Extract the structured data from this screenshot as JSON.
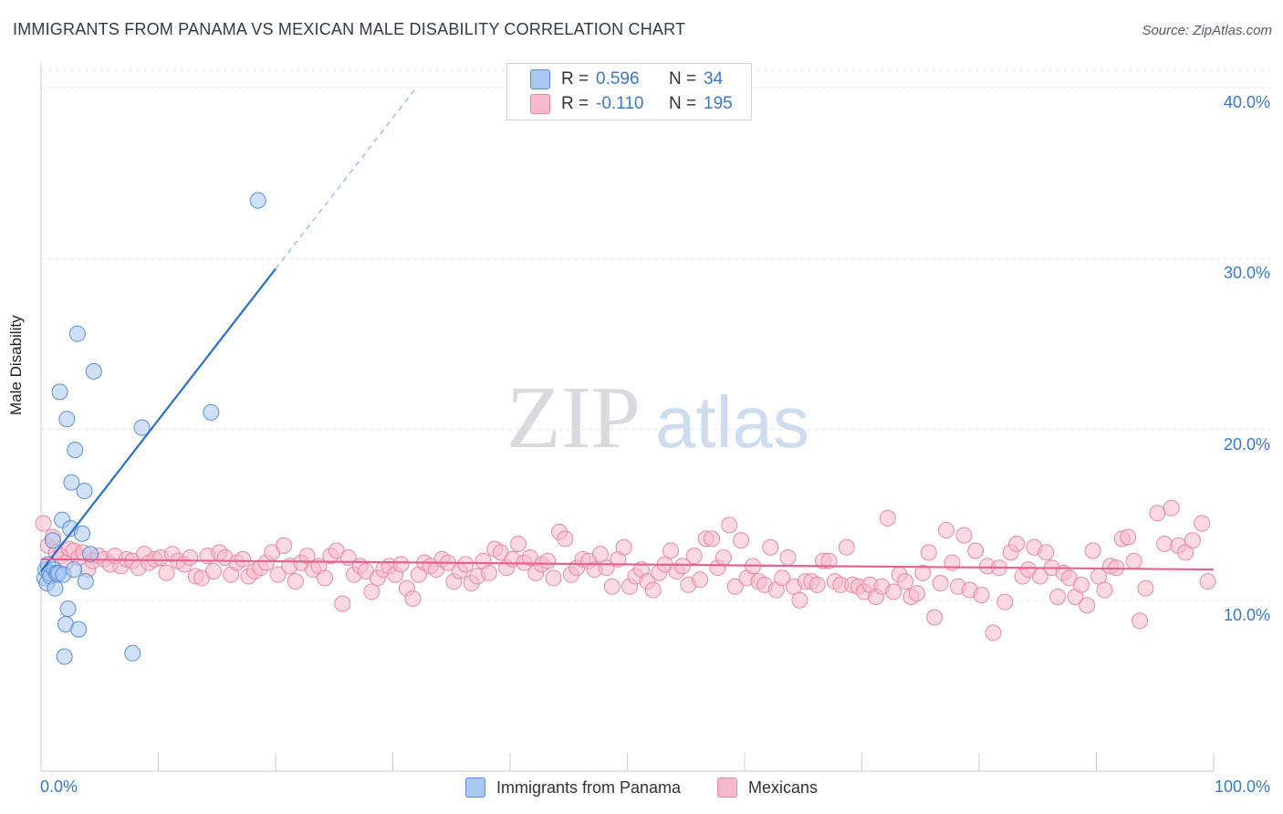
{
  "header": {
    "title": "IMMIGRANTS FROM PANAMA VS MEXICAN MALE DISABILITY CORRELATION CHART",
    "source": "Source: ZipAtlas.com"
  },
  "watermark": {
    "zip": "ZIP",
    "atlas": "atlas"
  },
  "legend": {
    "rows": [
      {
        "r_label": "R =",
        "r_value": "0.596",
        "n_label": "N =",
        "n_value": "34",
        "color": "#a9c8f0"
      },
      {
        "r_label": "R =",
        "r_value": "-0.110",
        "n_label": "N =",
        "n_value": "195",
        "color": "#f7b9cb"
      }
    ]
  },
  "colors": {
    "blue_fill": "#a9c8f0",
    "blue_stroke": "#5a8fd4",
    "blue_line": "#2a6fc9",
    "pink_fill": "#f7b9cb",
    "pink_stroke": "#e58aa6",
    "pink_line": "#e4628f",
    "axis_text": "#3a79c7",
    "grid": "#e3e6ea"
  },
  "chart_data": {
    "type": "scatter",
    "title": "IMMIGRANTS FROM PANAMA VS MEXICAN MALE DISABILITY CORRELATION CHART",
    "xlabel": "",
    "ylabel": "Male Disability",
    "xlim": [
      0,
      100
    ],
    "ylim": [
      0,
      41.5
    ],
    "x_tick_labels": [
      "0.0%",
      "100.0%"
    ],
    "y_ticks": [
      10,
      20,
      30,
      40
    ],
    "y_tick_labels": [
      "10.0%",
      "20.0%",
      "30.0%",
      "40.0%"
    ],
    "grid": true,
    "legend_position": "bottom",
    "series": [
      {
        "name": "Immigrants from Panama",
        "color": "#a9c8f0",
        "r": 0.596,
        "n": 34,
        "trend": {
          "x": [
            0,
            20
          ],
          "y": [
            11.7,
            29.4
          ],
          "dashed_to": [
            32,
            40
          ]
        },
        "points": [
          [
            0.3,
            11.3
          ],
          [
            0.4,
            11.8
          ],
          [
            0.5,
            11.0
          ],
          [
            0.6,
            12.1
          ],
          [
            0.7,
            11.6
          ],
          [
            0.8,
            11.4
          ],
          [
            1.0,
            13.5
          ],
          [
            1.1,
            11.8
          ],
          [
            1.2,
            10.7
          ],
          [
            1.3,
            11.6
          ],
          [
            1.4,
            11.5
          ],
          [
            1.5,
            11.6
          ],
          [
            1.6,
            22.2
          ],
          [
            1.8,
            14.7
          ],
          [
            1.9,
            11.5
          ],
          [
            2.0,
            6.7
          ],
          [
            2.1,
            8.6
          ],
          [
            2.2,
            20.6
          ],
          [
            2.3,
            9.5
          ],
          [
            2.5,
            14.2
          ],
          [
            2.6,
            16.9
          ],
          [
            2.8,
            11.8
          ],
          [
            2.9,
            18.8
          ],
          [
            3.1,
            25.6
          ],
          [
            3.2,
            8.3
          ],
          [
            3.5,
            13.9
          ],
          [
            3.7,
            16.4
          ],
          [
            3.8,
            11.1
          ],
          [
            4.2,
            12.7
          ],
          [
            4.5,
            23.4
          ],
          [
            7.8,
            6.9
          ],
          [
            8.6,
            20.1
          ],
          [
            14.5,
            21.0
          ],
          [
            18.5,
            33.4
          ]
        ]
      },
      {
        "name": "Mexicans",
        "color": "#f7b9cb",
        "r": -0.11,
        "n": 195,
        "trend": {
          "x": [
            0,
            100
          ],
          "y": [
            12.4,
            11.8
          ]
        },
        "points": [
          [
            0.2,
            14.5
          ],
          [
            0.6,
            13.2
          ],
          [
            1.0,
            13.7
          ],
          [
            1.3,
            12.8
          ],
          [
            1.7,
            12.6
          ],
          [
            2.1,
            12.2
          ],
          [
            2.4,
            13.0
          ],
          [
            2.8,
            12.9
          ],
          [
            3.2,
            12.5
          ],
          [
            3.6,
            12.8
          ],
          [
            4.0,
            11.8
          ],
          [
            4.4,
            12.3
          ],
          [
            4.9,
            12.6
          ],
          [
            5.4,
            12.4
          ],
          [
            5.9,
            12.1
          ],
          [
            6.3,
            12.6
          ],
          [
            6.8,
            12.0
          ],
          [
            7.3,
            12.4
          ],
          [
            7.8,
            12.3
          ],
          [
            8.3,
            11.9
          ],
          [
            8.8,
            12.7
          ],
          [
            9.2,
            12.2
          ],
          [
            9.7,
            12.4
          ],
          [
            10.2,
            12.5
          ],
          [
            10.7,
            11.6
          ],
          [
            11.2,
            12.7
          ],
          [
            11.7,
            12.3
          ],
          [
            12.2,
            12.1
          ],
          [
            12.7,
            12.5
          ],
          [
            13.2,
            11.4
          ],
          [
            13.7,
            11.3
          ],
          [
            14.2,
            12.6
          ],
          [
            14.7,
            11.7
          ],
          [
            15.2,
            12.8
          ],
          [
            15.7,
            12.5
          ],
          [
            16.2,
            11.5
          ],
          [
            16.7,
            12.2
          ],
          [
            17.2,
            12.4
          ],
          [
            17.7,
            11.4
          ],
          [
            18.2,
            11.7
          ],
          [
            18.7,
            11.9
          ],
          [
            19.2,
            12.2
          ],
          [
            19.7,
            12.8
          ],
          [
            20.2,
            11.5
          ],
          [
            20.7,
            13.2
          ],
          [
            21.2,
            12.0
          ],
          [
            21.7,
            11.1
          ],
          [
            22.2,
            12.2
          ],
          [
            22.7,
            12.6
          ],
          [
            23.2,
            11.8
          ],
          [
            23.7,
            12.0
          ],
          [
            24.2,
            11.3
          ],
          [
            24.7,
            12.6
          ],
          [
            25.2,
            12.9
          ],
          [
            25.7,
            9.8
          ],
          [
            26.2,
            12.5
          ],
          [
            26.7,
            11.5
          ],
          [
            27.2,
            12.0
          ],
          [
            27.7,
            11.7
          ],
          [
            28.2,
            10.5
          ],
          [
            28.7,
            11.3
          ],
          [
            29.2,
            11.8
          ],
          [
            29.7,
            12.0
          ],
          [
            30.2,
            11.5
          ],
          [
            30.7,
            12.1
          ],
          [
            31.2,
            10.7
          ],
          [
            31.7,
            10.1
          ],
          [
            32.2,
            11.5
          ],
          [
            32.7,
            12.2
          ],
          [
            33.2,
            12.0
          ],
          [
            33.7,
            11.8
          ],
          [
            34.2,
            12.4
          ],
          [
            34.7,
            12.2
          ],
          [
            35.2,
            11.1
          ],
          [
            35.7,
            11.7
          ],
          [
            36.2,
            12.1
          ],
          [
            36.7,
            11.0
          ],
          [
            37.2,
            11.4
          ],
          [
            37.7,
            12.3
          ],
          [
            38.2,
            11.6
          ],
          [
            38.7,
            13.0
          ],
          [
            39.2,
            12.8
          ],
          [
            39.7,
            11.9
          ],
          [
            40.2,
            12.4
          ],
          [
            40.7,
            13.3
          ],
          [
            41.2,
            12.2
          ],
          [
            41.7,
            12.5
          ],
          [
            42.2,
            11.6
          ],
          [
            42.7,
            12.1
          ],
          [
            43.2,
            12.3
          ],
          [
            43.7,
            11.3
          ],
          [
            44.2,
            14.0
          ],
          [
            44.7,
            13.6
          ],
          [
            45.2,
            11.5
          ],
          [
            45.7,
            11.9
          ],
          [
            46.2,
            12.4
          ],
          [
            46.7,
            12.3
          ],
          [
            47.2,
            11.8
          ],
          [
            47.7,
            12.7
          ],
          [
            48.2,
            11.9
          ],
          [
            48.7,
            10.8
          ],
          [
            49.2,
            12.4
          ],
          [
            49.7,
            13.1
          ],
          [
            50.2,
            10.8
          ],
          [
            50.7,
            11.4
          ],
          [
            51.2,
            11.8
          ],
          [
            51.7,
            11.1
          ],
          [
            52.2,
            10.6
          ],
          [
            52.7,
            11.6
          ],
          [
            53.2,
            12.1
          ],
          [
            53.7,
            12.9
          ],
          [
            54.2,
            11.7
          ],
          [
            54.7,
            12.0
          ],
          [
            55.2,
            10.9
          ],
          [
            55.7,
            12.6
          ],
          [
            56.2,
            11.2
          ],
          [
            56.7,
            13.6
          ],
          [
            57.2,
            13.6
          ],
          [
            57.7,
            11.9
          ],
          [
            58.2,
            12.5
          ],
          [
            58.7,
            14.4
          ],
          [
            59.2,
            10.8
          ],
          [
            59.7,
            13.5
          ],
          [
            60.2,
            11.3
          ],
          [
            60.7,
            12.0
          ],
          [
            61.2,
            11.1
          ],
          [
            61.7,
            10.9
          ],
          [
            62.2,
            13.1
          ],
          [
            62.7,
            10.6
          ],
          [
            63.2,
            11.3
          ],
          [
            63.7,
            12.5
          ],
          [
            64.2,
            10.8
          ],
          [
            64.7,
            10.0
          ],
          [
            65.2,
            11.1
          ],
          [
            65.7,
            11.1
          ],
          [
            66.2,
            10.9
          ],
          [
            66.7,
            12.3
          ],
          [
            67.2,
            12.3
          ],
          [
            67.7,
            11.1
          ],
          [
            68.2,
            10.9
          ],
          [
            68.7,
            13.1
          ],
          [
            69.2,
            10.9
          ],
          [
            69.7,
            10.8
          ],
          [
            70.2,
            10.5
          ],
          [
            70.7,
            10.9
          ],
          [
            71.2,
            10.2
          ],
          [
            71.7,
            10.8
          ],
          [
            72.2,
            14.8
          ],
          [
            72.7,
            10.5
          ],
          [
            73.2,
            11.5
          ],
          [
            73.7,
            11.1
          ],
          [
            74.2,
            10.2
          ],
          [
            74.7,
            10.4
          ],
          [
            75.2,
            11.6
          ],
          [
            75.7,
            12.8
          ],
          [
            76.2,
            9.0
          ],
          [
            76.7,
            11.0
          ],
          [
            77.2,
            14.1
          ],
          [
            77.7,
            12.2
          ],
          [
            78.2,
            10.8
          ],
          [
            78.7,
            13.8
          ],
          [
            79.2,
            10.6
          ],
          [
            79.7,
            12.9
          ],
          [
            80.2,
            10.3
          ],
          [
            80.7,
            12.0
          ],
          [
            81.2,
            8.1
          ],
          [
            81.7,
            11.9
          ],
          [
            82.2,
            9.9
          ],
          [
            82.7,
            12.8
          ],
          [
            83.2,
            13.3
          ],
          [
            83.7,
            11.4
          ],
          [
            84.2,
            11.8
          ],
          [
            84.7,
            13.1
          ],
          [
            85.2,
            11.4
          ],
          [
            85.7,
            12.8
          ],
          [
            86.2,
            11.9
          ],
          [
            86.7,
            10.2
          ],
          [
            87.2,
            11.6
          ],
          [
            87.7,
            11.3
          ],
          [
            88.2,
            10.2
          ],
          [
            88.7,
            10.9
          ],
          [
            89.2,
            9.7
          ],
          [
            89.7,
            12.9
          ],
          [
            90.2,
            11.4
          ],
          [
            90.7,
            10.6
          ],
          [
            91.2,
            12.0
          ],
          [
            91.7,
            11.9
          ],
          [
            92.2,
            13.6
          ],
          [
            92.7,
            13.7
          ],
          [
            93.2,
            12.3
          ],
          [
            93.7,
            8.8
          ],
          [
            94.2,
            10.7
          ],
          [
            95.2,
            15.1
          ],
          [
            95.8,
            13.3
          ],
          [
            96.4,
            15.4
          ],
          [
            97.0,
            13.2
          ],
          [
            97.6,
            12.8
          ],
          [
            98.2,
            13.5
          ],
          [
            99.0,
            14.5
          ],
          [
            99.5,
            11.1
          ]
        ]
      }
    ]
  },
  "bottom_legend": {
    "items": [
      {
        "label": "Immigrants from Panama",
        "color": "#a9c8f0"
      },
      {
        "label": "Mexicans",
        "color": "#f7b9cb"
      }
    ]
  },
  "x_axis": {
    "left_label": "0.0%",
    "right_label": "100.0%"
  },
  "y_axis_label": "Male Disability"
}
